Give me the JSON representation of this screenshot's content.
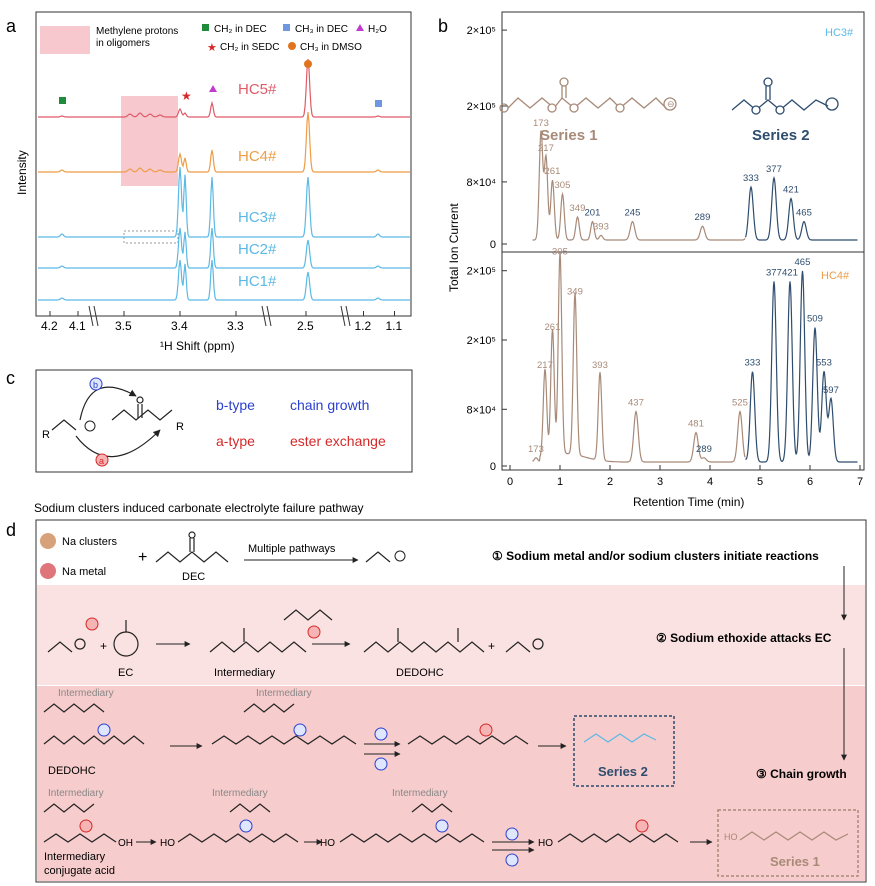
{
  "panel_letters": {
    "a": "a",
    "b": "b",
    "c": "c",
    "d": "d"
  },
  "legend": {
    "methylene": [
      "Methylene protons",
      "in oligomers"
    ],
    "ch2_dec": "CH₂ in DEC",
    "ch3_dec": "CH₃ in DEC",
    "h2o": "H₂O",
    "ch2_sedc": "CH₂ in SEDC",
    "ch3_dmso": "CH₃ in DMSO"
  },
  "colors": {
    "hc5": "#e05a68",
    "hc4": "#ee9c46",
    "hc1_3": "#5bb9e6",
    "ch2_dec": "#1f8c3b",
    "ch3_dec": "#6f97e0",
    "h2o": "#c13bd0",
    "sedc": "#d62828",
    "dmso": "#e0741e",
    "series1": "#a88a78",
    "series2": "#2f4d6e",
    "btype": "#2b3fd0",
    "atype": "#d62828",
    "band": "#f7c9cf"
  },
  "nmr": {
    "traces": [
      "HC5#",
      "HC4#",
      "HC3#",
      "HC2#",
      "HC1#"
    ],
    "ylabel": "Intensity",
    "ticks": [
      "4.2",
      "4.1",
      "3.5",
      "3.4",
      "3.3",
      "2.5",
      "1.2",
      "1.1"
    ],
    "tick_values": [
      4.2,
      4.1,
      3.5,
      3.4,
      3.3,
      2.5,
      1.2,
      1.1
    ],
    "xlabel": "¹H Shift (ppm)",
    "peaks_ppm": [
      4.07,
      3.4,
      3.38,
      3.33,
      2.5,
      1.18
    ]
  },
  "chart_data": {
    "type": "line",
    "xlabel": "Retention Time (min)",
    "ylabel": "Total Ion Current",
    "xlim": [
      0,
      7
    ],
    "x_ticks": [
      "0",
      "1",
      "2",
      "3",
      "4",
      "5",
      "6",
      "7"
    ],
    "panels": [
      {
        "name": "HC3#",
        "y_ticks": [
          "0",
          "8×10⁴",
          "2×10⁵",
          "2×10⁵"
        ],
        "peaks": [
          {
            "mz": "173",
            "t": 0.62,
            "h": 0.47,
            "series": 1
          },
          {
            "mz": "217",
            "t": 0.72,
            "h": 0.36,
            "series": 1
          },
          {
            "mz": "261",
            "t": 0.85,
            "h": 0.26,
            "series": 1
          },
          {
            "mz": "305",
            "t": 1.05,
            "h": 0.2,
            "series": 1
          },
          {
            "mz": "349",
            "t": 1.35,
            "h": 0.1,
            "series": 1
          },
          {
            "mz": "201",
            "t": 1.65,
            "h": 0.08,
            "series": 2
          },
          {
            "mz": "393",
            "t": 1.82,
            "h": 0.02,
            "series": 1
          },
          {
            "mz": "245",
            "t": 2.45,
            "h": 0.08,
            "series": 2
          },
          {
            "mz": "289",
            "t": 3.85,
            "h": 0.06,
            "series": 2
          },
          {
            "mz": "333",
            "t": 4.82,
            "h": 0.23,
            "series": 2
          },
          {
            "mz": "377",
            "t": 5.28,
            "h": 0.27,
            "series": 2
          },
          {
            "mz": "421",
            "t": 5.62,
            "h": 0.18,
            "series": 2
          },
          {
            "mz": "465",
            "t": 5.88,
            "h": 0.08,
            "series": 2
          }
        ]
      },
      {
        "name": "HC4#",
        "y_ticks": [
          "0",
          "8×10⁴",
          "2×10⁵",
          "2×10⁵"
        ],
        "peaks": [
          {
            "mz": "173",
            "t": 0.52,
            "h": 0.02,
            "series": 1
          },
          {
            "mz": "217",
            "t": 0.7,
            "h": 0.42,
            "series": 1
          },
          {
            "mz": "261",
            "t": 0.85,
            "h": 0.6,
            "series": 1
          },
          {
            "mz": "305",
            "t": 1.0,
            "h": 0.96,
            "series": 1
          },
          {
            "mz": "349",
            "t": 1.3,
            "h": 0.77,
            "series": 1
          },
          {
            "mz": "393",
            "t": 1.8,
            "h": 0.42,
            "series": 1
          },
          {
            "mz": "437",
            "t": 2.52,
            "h": 0.24,
            "series": 1
          },
          {
            "mz": "481",
            "t": 3.72,
            "h": 0.14,
            "series": 1
          },
          {
            "mz": "289",
            "t": 3.88,
            "h": 0.02,
            "series": 2
          },
          {
            "mz": "525",
            "t": 4.6,
            "h": 0.24,
            "series": 1
          },
          {
            "mz": "333",
            "t": 4.85,
            "h": 0.43,
            "series": 2
          },
          {
            "mz": "377",
            "t": 5.28,
            "h": 0.86,
            "series": 2
          },
          {
            "mz": "421",
            "t": 5.6,
            "h": 0.86,
            "series": 2
          },
          {
            "mz": "465",
            "t": 5.85,
            "h": 0.91,
            "series": 2
          },
          {
            "mz": "509",
            "t": 6.1,
            "h": 0.64,
            "series": 2
          },
          {
            "mz": "553",
            "t": 6.28,
            "h": 0.43,
            "series": 2
          },
          {
            "mz": "597",
            "t": 6.42,
            "h": 0.3,
            "series": 2
          }
        ]
      }
    ]
  },
  "schemes": {
    "series1": "Series 1",
    "series2": "Series 2"
  },
  "panel_c": {
    "b_type": "b-type",
    "b_desc": "chain growth",
    "a_type": "a-type",
    "a_desc": "ester exchange",
    "r": "R",
    "b": "b",
    "a": "a"
  },
  "panel_d": {
    "title": "Sodium clusters induced carbonate electrolyte failure pathway",
    "na_clusters": "Na clusters",
    "na_metal": "Na metal",
    "plus": "+",
    "dec": "DEC",
    "multiple_pathways": "Multiple pathways",
    "step1": "① Sodium metal and/or sodium clusters initiate reactions",
    "step2": "② Sodium ethoxide attacks EC",
    "step3": "③ Chain growth",
    "ec": "EC",
    "intermediary": "Intermediary",
    "dedohc": "DEDOHC",
    "conjugate": "conjugate acid",
    "oh": "OH",
    "ho": "HO",
    "series1": "Series 1",
    "series2": "Series 2"
  }
}
